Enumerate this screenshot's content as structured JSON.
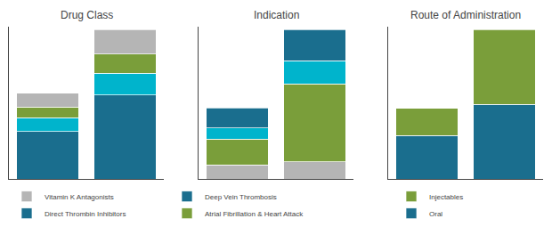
{
  "chart_data": [
    {
      "type": "bar",
      "title": "Drug Class",
      "stacked": true,
      "categories": [
        null,
        null
      ],
      "ylim": [
        0,
        112.2
      ],
      "tick_labels": false,
      "grid": false,
      "legend": "bottom",
      "series": [
        {
          "name": "Direct Thrombin Inhibitors",
          "color": "#1a6e8e",
          "values": [
            35,
            62
          ]
        },
        {
          "color": "#00b4cc",
          "values": [
            10,
            16
          ]
        },
        {
          "color": "#7a9e3a",
          "values": [
            8,
            14
          ]
        },
        {
          "name": "Vitamin K Antagonists",
          "color": "#b5b5b5",
          "values": [
            10,
            18
          ]
        }
      ]
    },
    {
      "type": "bar",
      "title": "Indication",
      "stacked": true,
      "categories": [
        null,
        null
      ],
      "ylim": [
        0,
        107.1
      ],
      "tick_labels": false,
      "grid": false,
      "legend": "bottom",
      "series": [
        {
          "color": "#b5b5b5",
          "values": [
            10,
            12
          ]
        },
        {
          "name": "Atrial Fibrillation & Heart Attack",
          "color": "#7a9e3a",
          "values": [
            18,
            55
          ]
        },
        {
          "color": "#00b4cc",
          "values": [
            8,
            16
          ]
        },
        {
          "name": "Deep Vein Thrombosis",
          "color": "#1a6e8e",
          "values": [
            14,
            22
          ]
        }
      ]
    },
    {
      "type": "bar",
      "title": "Route of Administration",
      "stacked": true,
      "categories": [
        null,
        null
      ],
      "ylim": [
        0,
        112.2
      ],
      "tick_labels": false,
      "grid": false,
      "legend": "bottom",
      "series": [
        {
          "name": "Oral",
          "color": "#1a6e8e",
          "values": [
            32,
            55
          ]
        },
        {
          "name": "Injectables",
          "color": "#7a9e3a",
          "values": [
            20,
            55
          ]
        }
      ]
    }
  ]
}
